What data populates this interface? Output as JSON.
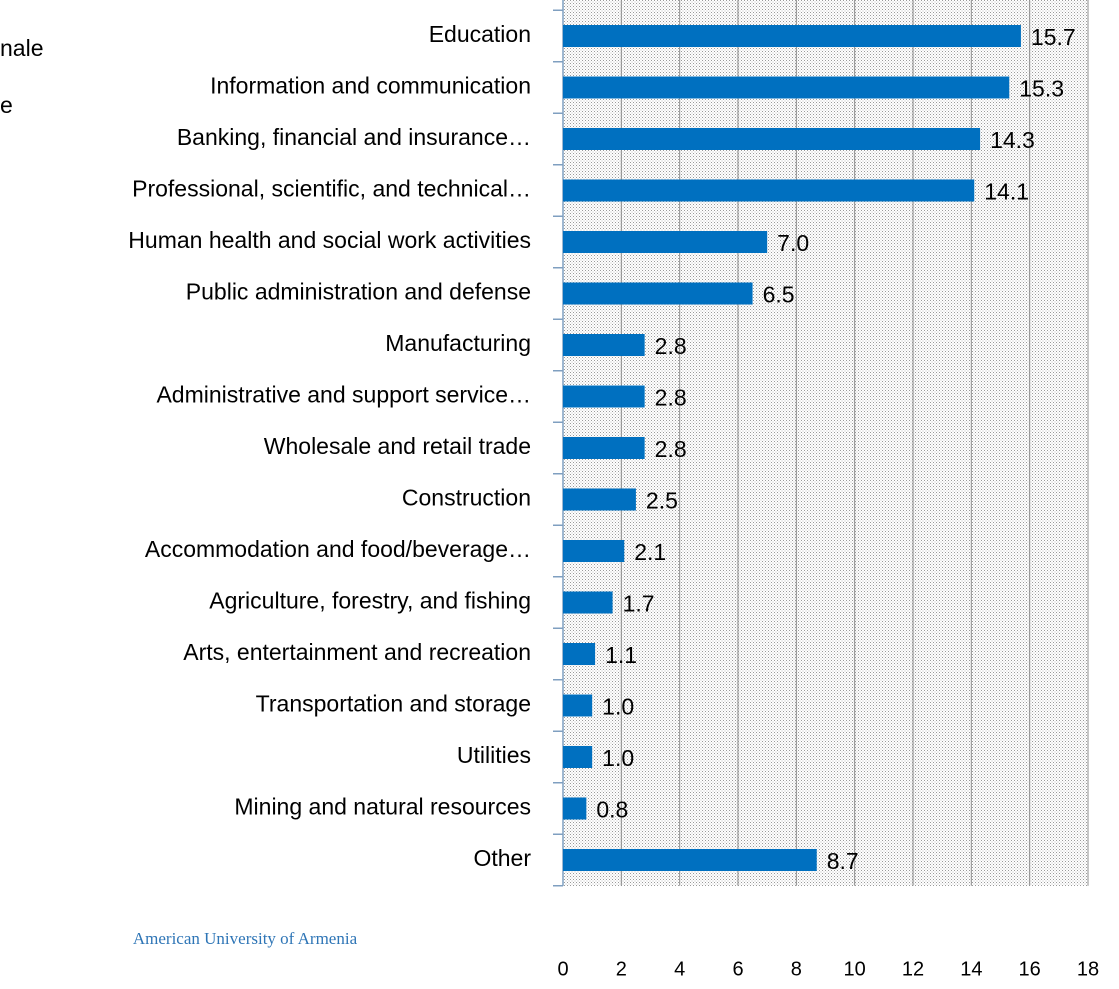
{
  "chart_data": {
    "type": "bar",
    "orientation": "horizontal",
    "legend_fragments": [
      "nale",
      "e"
    ],
    "footer": "American University of Armenia",
    "categories": [
      "Education",
      "Information and communication",
      "Banking, financial and insurance…",
      "Professional, scientific, and technical…",
      "Human health and social work activities",
      "Public administration and defense",
      "Manufacturing",
      "Administrative and support service…",
      "Wholesale and retail trade",
      "Construction",
      "Accommodation and food/beverage…",
      "Agriculture, forestry, and fishing",
      "Arts, entertainment and recreation",
      "Transportation and storage",
      "Utilities",
      "Mining and natural resources",
      "Other"
    ],
    "values": [
      15.7,
      15.3,
      14.3,
      14.1,
      7,
      6.5,
      2.8,
      2.8,
      2.8,
      2.5,
      2.1,
      1.7,
      1.1,
      1,
      1,
      0.8,
      8.7
    ],
    "value_labels": [
      "15.7",
      "15.3",
      "14.3",
      "14.1",
      "7.0",
      "6.5",
      "2.8",
      "2.8",
      "2.8",
      "2.5",
      "2.1",
      "1.7",
      "1.1",
      "1.0",
      "1.0",
      "0.8",
      "8.7"
    ],
    "color": "#0070c0",
    "xlim": [
      0,
      18
    ],
    "xticks": [
      0,
      2,
      4,
      6,
      8,
      10,
      12,
      14,
      16,
      18
    ],
    "grid": true
  }
}
